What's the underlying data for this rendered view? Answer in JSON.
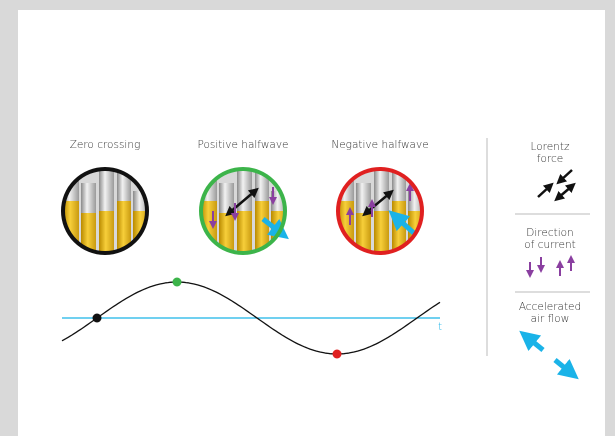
{
  "panels": [
    {
      "label": "Zero crossing"
    },
    {
      "label": "Positive halfwave"
    },
    {
      "label": "Negative halfwave"
    }
  ],
  "wave": {
    "axis_label": "t"
  },
  "legend": [
    {
      "label_lines": [
        "Lorentz",
        "force"
      ]
    },
    {
      "label_lines": [
        "Direction",
        "of current"
      ]
    },
    {
      "label_lines": [
        "Accelerated",
        "air flow"
      ]
    }
  ]
}
